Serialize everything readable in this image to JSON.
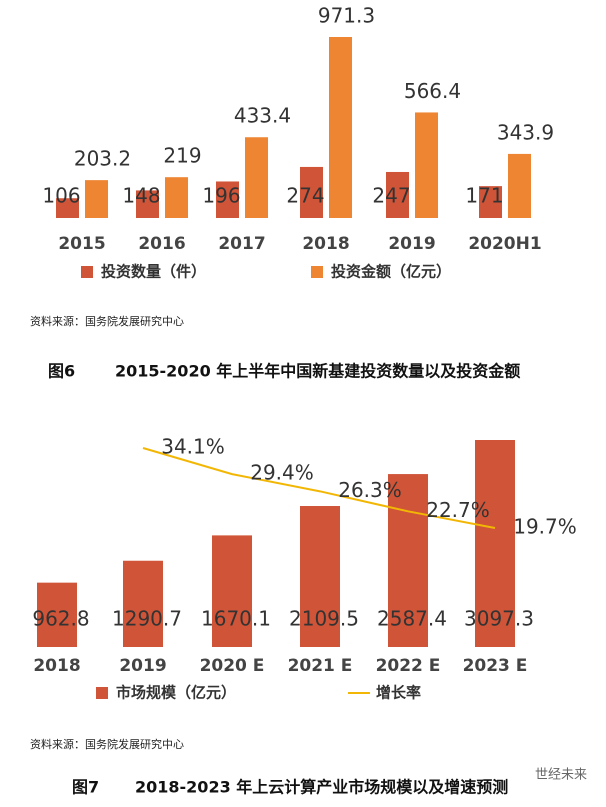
{
  "chart_data": [
    {
      "type": "bar",
      "categories": [
        "2015",
        "2016",
        "2017",
        "2018",
        "2019",
        "2020H1"
      ],
      "series": [
        {
          "name": "投资数量（件）",
          "color": "#cf5438",
          "values": [
            106,
            148,
            196,
            274,
            247,
            171
          ]
        },
        {
          "name": "投资金额（亿元）",
          "color": "#ee8532",
          "values": [
            203.2,
            219,
            433.4,
            971.3,
            566.4,
            343.9
          ]
        }
      ]
    },
    {
      "type": "combo",
      "categories": [
        "2018",
        "2019",
        "2020 E",
        "2021 E",
        "2022 E",
        "2023 E"
      ],
      "series": [
        {
          "name": "市场规模（亿元）",
          "type": "bar",
          "color": "#cf5438",
          "values": [
            962.8,
            1290.7,
            1670.1,
            2109.5,
            2587.4,
            3097.3
          ]
        },
        {
          "name": "增长率",
          "type": "line",
          "axis": "y2",
          "color": "#f2b705",
          "values": [
            null,
            34.1,
            29.4,
            26.3,
            22.7,
            19.7
          ],
          "value_labels": [
            null,
            "34.1%",
            "29.4%",
            "26.3%",
            "22.7%",
            "19.7%"
          ]
        }
      ]
    }
  ],
  "figures": [
    {
      "source": "资料来源：国务院发展研究中心",
      "label": "图6",
      "text": "2015-2020 年上半年中国新基建投资数量以及投资金额"
    },
    {
      "source": "资料来源：国务院发展研究中心",
      "label": "图7",
      "text": "2018-2023 年上云计算产业市场规模以及增速预测"
    }
  ],
  "watermark": "世经未来"
}
